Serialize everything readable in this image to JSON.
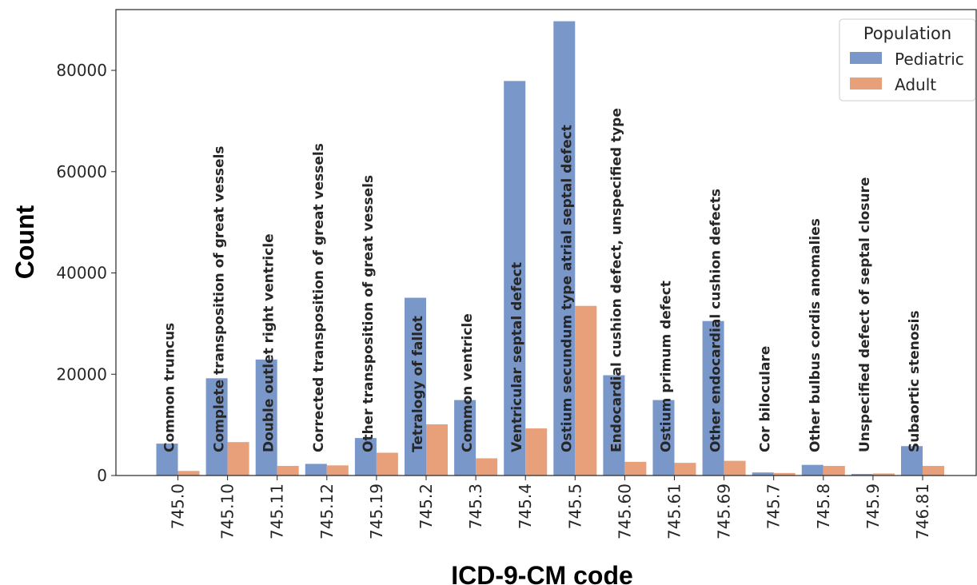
{
  "chart_data": {
    "type": "bar",
    "xlabel": "ICD-9-CM code",
    "ylabel": "Count",
    "ylim": [
      0,
      92000
    ],
    "yticks": [
      0,
      20000,
      40000,
      60000,
      80000
    ],
    "grid": false,
    "legend": {
      "title": "Population",
      "placement": "top-right"
    },
    "categories": [
      "745.0",
      "745.10",
      "745.11",
      "745.12",
      "745.19",
      "745.2",
      "745.3",
      "745.4",
      "745.5",
      "745.60",
      "745.61",
      "745.69",
      "745.7",
      "745.8",
      "745.9",
      "746.81"
    ],
    "descriptions": [
      "Common truncus",
      "Complete transposition of great vessels",
      "Double outlet right ventricle",
      "Corrected transposition of great vessels",
      "Other transposition of great vessels",
      "Tetralogy of fallot",
      "Common ventricle",
      "Ventricular septal defect",
      "Ostium secundum type atrial septal defect",
      "Endocardial cushion defect, unspecified type",
      "Ostium primum defect",
      "Other endocardial cushion defects",
      "Cor biloculare",
      "Other bulbus cordis anomalies",
      "Unspecified defect of septal closure",
      "Subaortic stenosis"
    ],
    "series": [
      {
        "name": "Pediatric",
        "color": "#7a97c9",
        "values": [
          6300,
          19200,
          22900,
          2300,
          7400,
          35100,
          14900,
          77900,
          89700,
          19800,
          14900,
          30500,
          600,
          2100,
          300,
          5800
        ]
      },
      {
        "name": "Adult",
        "color": "#e8a07a",
        "values": [
          900,
          6600,
          1900,
          2000,
          4500,
          10100,
          3400,
          9300,
          33500,
          2700,
          2500,
          2900,
          500,
          1900,
          400,
          1900
        ]
      }
    ]
  }
}
